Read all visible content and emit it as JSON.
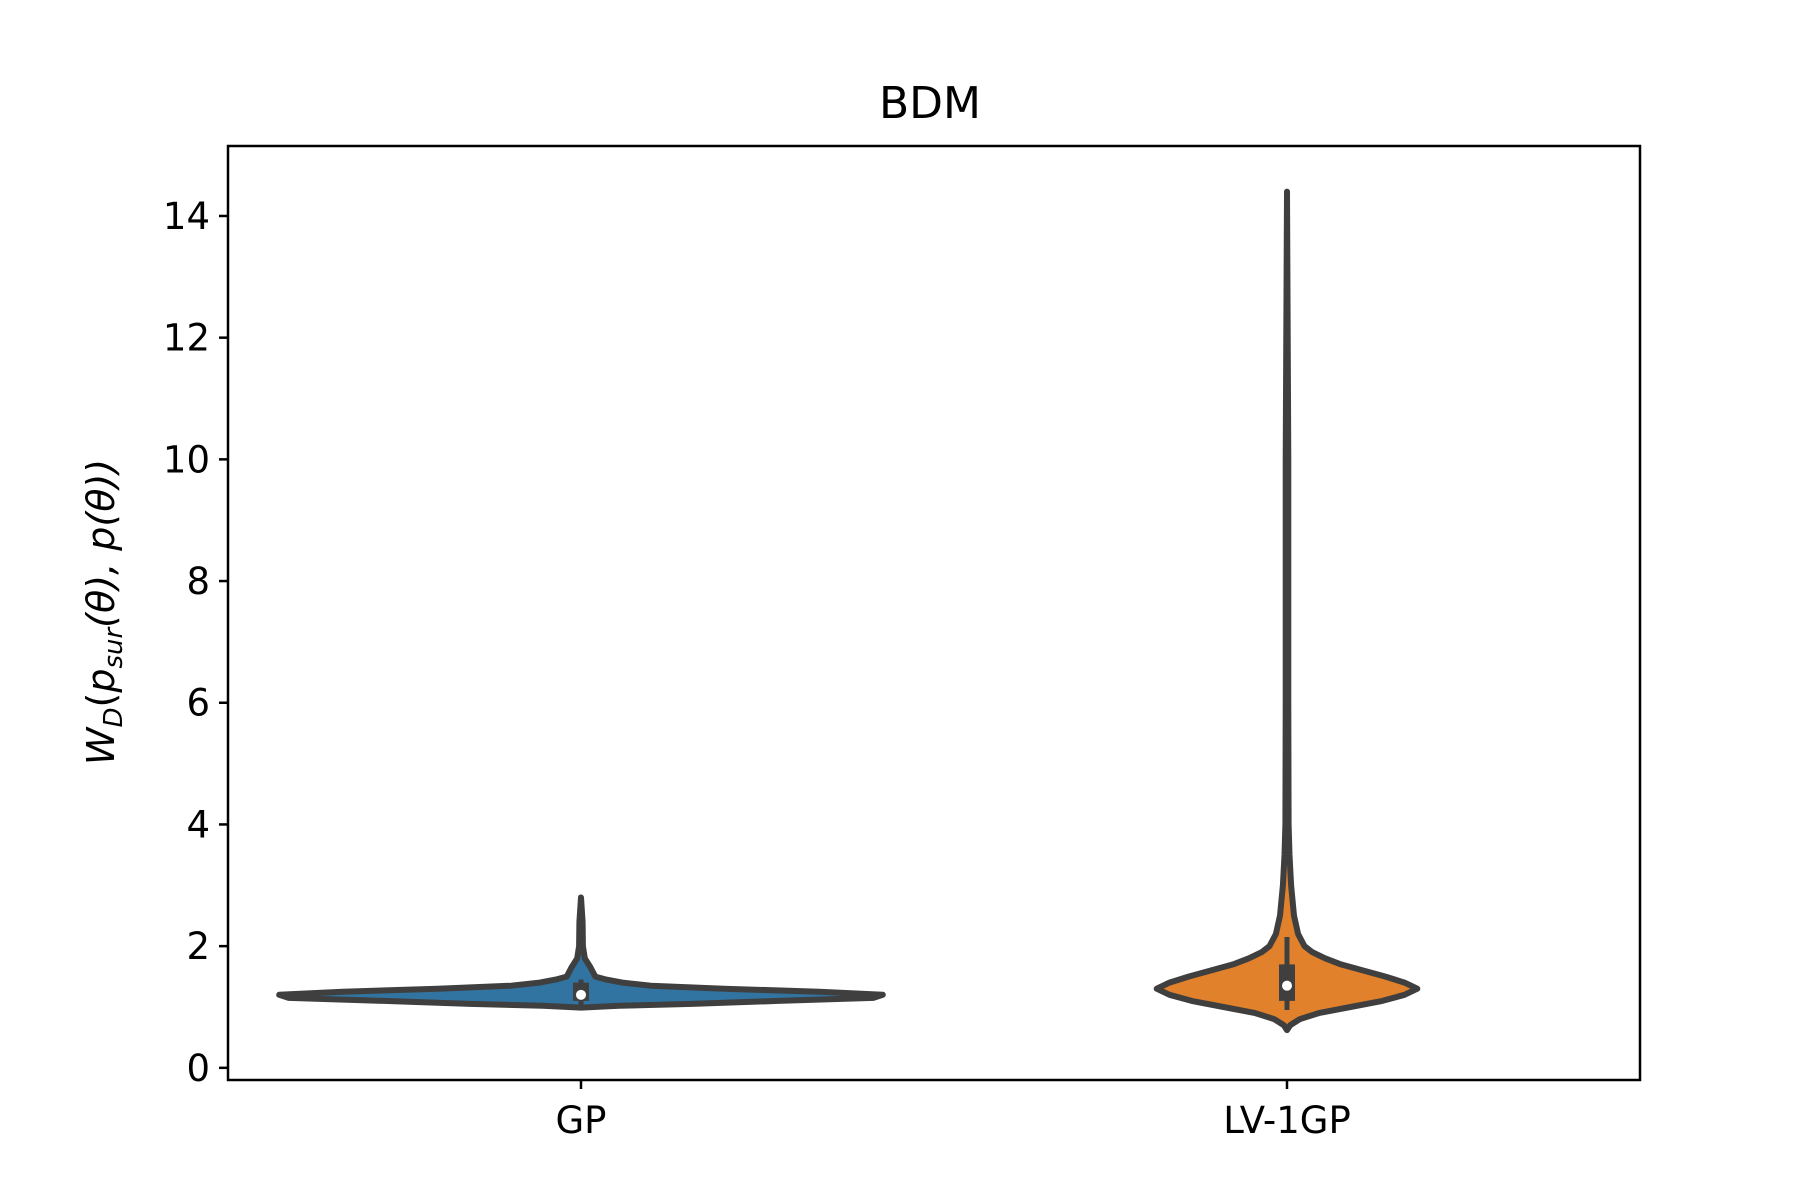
{
  "chart_data": {
    "type": "violin",
    "title": "BDM",
    "xlabel": "",
    "ylabel": "W_D(p_sur(θ), p(θ))",
    "ylabel_parts": {
      "w": "W",
      "w_sub": "D",
      "open": "(",
      "p": "p",
      "p_sub": "sur",
      "rest": "(θ), p(θ))"
    },
    "categories": [
      "GP",
      "LV-1GP"
    ],
    "ylim": [
      -0.2,
      15.15
    ],
    "yticks": [
      0,
      2,
      4,
      6,
      8,
      10,
      12,
      14
    ],
    "grid": false,
    "violins": [
      {
        "name": "GP",
        "color": "#3274a1",
        "min": 0.99,
        "max": 2.8,
        "q1": 1.1,
        "median": 1.2,
        "q3": 1.4,
        "whisker_low": 0.99,
        "whisker_high": 1.45,
        "density_halfwidth": [
          [
            0.99,
            0.0
          ],
          [
            1.02,
            0.12
          ],
          [
            1.05,
            0.35
          ],
          [
            1.1,
            0.62
          ],
          [
            1.15,
            0.92
          ],
          [
            1.2,
            0.95
          ],
          [
            1.25,
            0.75
          ],
          [
            1.3,
            0.45
          ],
          [
            1.35,
            0.22
          ],
          [
            1.4,
            0.13
          ],
          [
            1.45,
            0.08
          ],
          [
            1.5,
            0.045
          ],
          [
            1.55,
            0.04
          ],
          [
            1.6,
            0.035
          ],
          [
            1.65,
            0.03
          ],
          [
            1.7,
            0.024
          ],
          [
            1.8,
            0.012
          ],
          [
            2.0,
            0.006
          ],
          [
            2.4,
            0.005
          ],
          [
            2.8,
            0.0
          ]
        ]
      },
      {
        "name": "LV-1GP",
        "color": "#e1812c",
        "min": 0.62,
        "max": 14.4,
        "q1": 1.1,
        "median": 1.35,
        "q3": 1.7,
        "whisker_low": 0.95,
        "whisker_high": 2.15,
        "density_halfwidth": [
          [
            0.62,
            0.0
          ],
          [
            0.7,
            0.01
          ],
          [
            0.8,
            0.04
          ],
          [
            0.9,
            0.1
          ],
          [
            1.0,
            0.2
          ],
          [
            1.1,
            0.3
          ],
          [
            1.2,
            0.37
          ],
          [
            1.3,
            0.41
          ],
          [
            1.4,
            0.37
          ],
          [
            1.5,
            0.31
          ],
          [
            1.6,
            0.24
          ],
          [
            1.7,
            0.17
          ],
          [
            1.8,
            0.12
          ],
          [
            1.9,
            0.08
          ],
          [
            2.0,
            0.055
          ],
          [
            2.2,
            0.035
          ],
          [
            2.5,
            0.022
          ],
          [
            3.0,
            0.013
          ],
          [
            3.5,
            0.008
          ],
          [
            4.0,
            0.005
          ],
          [
            6.0,
            0.004
          ],
          [
            10.0,
            0.004
          ],
          [
            14.4,
            0.0
          ]
        ]
      }
    ]
  }
}
